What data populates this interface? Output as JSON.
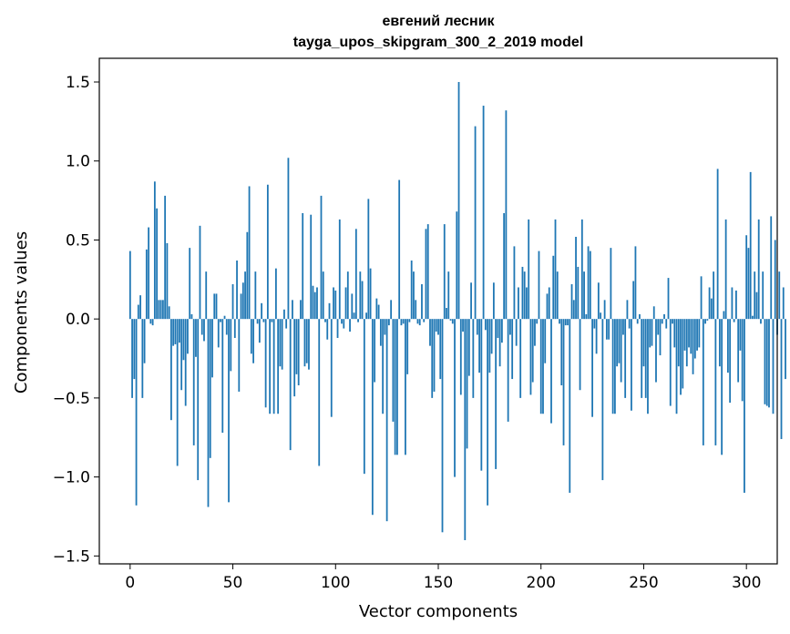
{
  "chart_data": {
    "type": "bar",
    "title": "евгений лесник",
    "subtitle": "tayga_upos_skipgram_300_2_2019 model",
    "xlabel": "Vector components",
    "ylabel": "Components values",
    "xlim": [
      -15,
      315
    ],
    "ylim": [
      -1.55,
      1.65
    ],
    "xticks": [
      0,
      50,
      100,
      150,
      200,
      250,
      300
    ],
    "yticks": [
      -1.5,
      -1.0,
      -0.5,
      0.0,
      0.5,
      1.0,
      1.5
    ],
    "xtick_labels": [
      "0",
      "50",
      "100",
      "150",
      "200",
      "250",
      "300"
    ],
    "ytick_labels": [
      "−1.5",
      "−1.0",
      "−0.5",
      "0.0",
      "0.5",
      "1.0",
      "1.5"
    ],
    "bar_color": "#1f77b4",
    "values": [
      0.43,
      -0.5,
      -0.38,
      -1.18,
      0.09,
      0.15,
      -0.5,
      -0.28,
      0.44,
      0.58,
      -0.03,
      -0.04,
      0.87,
      0.7,
      0.12,
      0.12,
      0.12,
      0.78,
      0.48,
      0.08,
      -0.64,
      -0.17,
      -0.16,
      -0.93,
      -0.15,
      -0.45,
      -0.26,
      -0.55,
      -0.22,
      0.45,
      0.03,
      -0.8,
      -0.24,
      -1.02,
      0.59,
      -0.1,
      -0.14,
      0.3,
      -1.19,
      -0.88,
      -0.37,
      0.16,
      0.16,
      -0.18,
      -0.02,
      -0.72,
      0.02,
      -0.1,
      -1.16,
      -0.33,
      0.22,
      -0.12,
      0.37,
      -0.46,
      0.16,
      0.23,
      0.3,
      0.55,
      0.84,
      -0.22,
      -0.28,
      0.3,
      -0.03,
      -0.15,
      0.1,
      -0.02,
      -0.56,
      0.85,
      -0.6,
      -0.02,
      -0.6,
      0.32,
      -0.6,
      -0.3,
      -0.32,
      0.06,
      -0.06,
      1.02,
      -0.83,
      0.12,
      -0.49,
      -0.35,
      -0.42,
      0.12,
      0.67,
      -0.3,
      -0.28,
      -0.32,
      0.66,
      0.21,
      0.17,
      0.2,
      -0.93,
      0.78,
      0.3,
      -0.02,
      -0.13,
      0.1,
      -0.62,
      0.2,
      0.18,
      -0.12,
      0.63,
      -0.03,
      -0.06,
      0.2,
      0.3,
      -0.08,
      0.16,
      0.04,
      0.57,
      -0.02,
      0.3,
      0.24,
      -0.98,
      0.04,
      0.76,
      0.32,
      -1.24,
      -0.4,
      0.13,
      0.09,
      -0.17,
      -0.6,
      -0.1,
      -1.28,
      -0.04,
      0.12,
      -0.65,
      -0.86,
      -0.86,
      0.88,
      -0.04,
      -0.03,
      -0.86,
      -0.35,
      -0.02,
      0.37,
      0.3,
      0.12,
      -0.03,
      -0.04,
      0.22,
      -0.02,
      0.57,
      0.6,
      -0.17,
      -0.5,
      -0.46,
      -0.08,
      -0.1,
      -0.38,
      -1.35,
      0.6,
      0.07,
      0.3,
      -0.01,
      -0.03,
      -1.0,
      0.68,
      1.5,
      -0.48,
      -0.08,
      -1.4,
      -0.82,
      -0.36,
      0.23,
      -0.5,
      1.22,
      -0.1,
      -0.34,
      -0.96,
      1.35,
      -0.07,
      -1.18,
      -0.34,
      -0.22,
      0.23,
      -0.95,
      -0.12,
      -0.3,
      -0.15,
      0.67,
      1.32,
      -0.65,
      -0.1,
      -0.38,
      0.46,
      -0.17,
      0.2,
      -0.5,
      0.33,
      0.3,
      0.2,
      0.63,
      -0.48,
      -0.4,
      -0.17,
      -0.03,
      0.43,
      -0.6,
      -0.6,
      -0.28,
      0.16,
      0.2,
      -0.66,
      0.4,
      0.63,
      0.3,
      -0.03,
      -0.42,
      -0.8,
      -0.04,
      -0.04,
      -1.1,
      0.22,
      0.12,
      0.52,
      0.33,
      -0.45,
      0.63,
      0.3,
      0.03,
      0.46,
      0.43,
      -0.62,
      -0.06,
      -0.22,
      0.23,
      0.04,
      -1.02,
      0.12,
      -0.13,
      -0.13,
      0.45,
      -0.6,
      -0.6,
      -0.3,
      -0.28,
      -0.4,
      -0.1,
      -0.5,
      0.12,
      -0.06,
      -0.58,
      0.24,
      0.46,
      -0.03,
      0.03,
      -0.5,
      -0.3,
      -0.5,
      -0.6,
      -0.18,
      -0.17,
      0.08,
      -0.4,
      -0.1,
      -0.23,
      -0.03,
      0.03,
      -0.06,
      0.26,
      -0.55,
      -0.03,
      -0.18,
      -0.6,
      -0.3,
      -0.48,
      -0.44,
      -0.2,
      -0.3,
      -0.18,
      -0.22,
      -0.35,
      -0.25,
      -0.2,
      -0.18,
      0.27,
      -0.8,
      -0.03,
      -0.01,
      0.2,
      0.13,
      0.3,
      -0.8,
      0.95,
      -0.3,
      -0.86,
      0.05,
      0.63,
      -0.34,
      -0.53,
      0.2,
      -0.02,
      0.18,
      -0.4,
      -0.2,
      -0.52,
      -1.1,
      0.53,
      0.45,
      0.93,
      0.02,
      0.3,
      0.17,
      0.63,
      -0.03,
      0.3,
      -0.54,
      -0.55,
      -0.56,
      0.65,
      -0.6,
      0.5,
      -0.1,
      0.3,
      -0.76,
      0.2,
      -0.38
    ]
  }
}
